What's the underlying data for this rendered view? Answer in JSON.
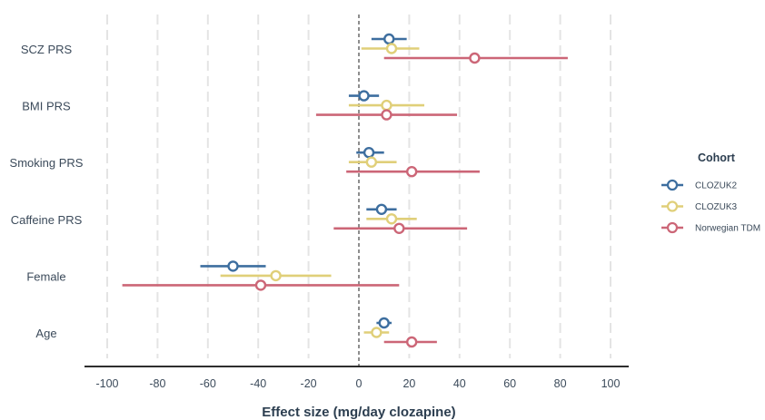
{
  "chart_data": {
    "type": "forest-plot",
    "xlabel": "Effect size (mg/day clozapine)",
    "xlim": [
      -100,
      100
    ],
    "xticks": [
      -100,
      -80,
      -60,
      -40,
      -20,
      0,
      20,
      40,
      60,
      80,
      100
    ],
    "grid": "vertical-dashed",
    "reference_line": 0,
    "categories": [
      "SCZ PRS",
      "BMI PRS",
      "Smoking PRS",
      "Caffeine PRS",
      "Female",
      "Age"
    ],
    "legend": {
      "title": "Cohort",
      "placement": "right"
    },
    "series": [
      {
        "name": "CLOZUK2",
        "color": "#3d6e9f",
        "points": [
          {
            "category": "SCZ PRS",
            "estimate": 12,
            "lower": 5,
            "upper": 19
          },
          {
            "category": "BMI PRS",
            "estimate": 2,
            "lower": -4,
            "upper": 8
          },
          {
            "category": "Smoking PRS",
            "estimate": 4,
            "lower": -1,
            "upper": 10
          },
          {
            "category": "Caffeine PRS",
            "estimate": 9,
            "lower": 3,
            "upper": 15
          },
          {
            "category": "Female",
            "estimate": -50,
            "lower": -63,
            "upper": -37
          },
          {
            "category": "Age",
            "estimate": 10,
            "lower": 7,
            "upper": 13
          }
        ]
      },
      {
        "name": "CLOZUK3",
        "color": "#e0cf79",
        "points": [
          {
            "category": "SCZ PRS",
            "estimate": 13,
            "lower": 1,
            "upper": 24
          },
          {
            "category": "BMI PRS",
            "estimate": 11,
            "lower": -4,
            "upper": 26
          },
          {
            "category": "Smoking PRS",
            "estimate": 5,
            "lower": -4,
            "upper": 15
          },
          {
            "category": "Caffeine PRS",
            "estimate": 13,
            "lower": 3,
            "upper": 23
          },
          {
            "category": "Female",
            "estimate": -33,
            "lower": -55,
            "upper": -11
          },
          {
            "category": "Age",
            "estimate": 7,
            "lower": 2,
            "upper": 12
          }
        ]
      },
      {
        "name": "Norwegian TDM",
        "color": "#cc6677",
        "points": [
          {
            "category": "SCZ PRS",
            "estimate": 46,
            "lower": 10,
            "upper": 83
          },
          {
            "category": "BMI PRS",
            "estimate": 11,
            "lower": -17,
            "upper": 39
          },
          {
            "category": "Smoking PRS",
            "estimate": 21,
            "lower": -5,
            "upper": 48
          },
          {
            "category": "Caffeine PRS",
            "estimate": 16,
            "lower": -10,
            "upper": 43
          },
          {
            "category": "Female",
            "estimate": -39,
            "lower": -94,
            "upper": 16
          },
          {
            "category": "Age",
            "estimate": 21,
            "lower": 10,
            "upper": 31
          }
        ]
      }
    ]
  }
}
